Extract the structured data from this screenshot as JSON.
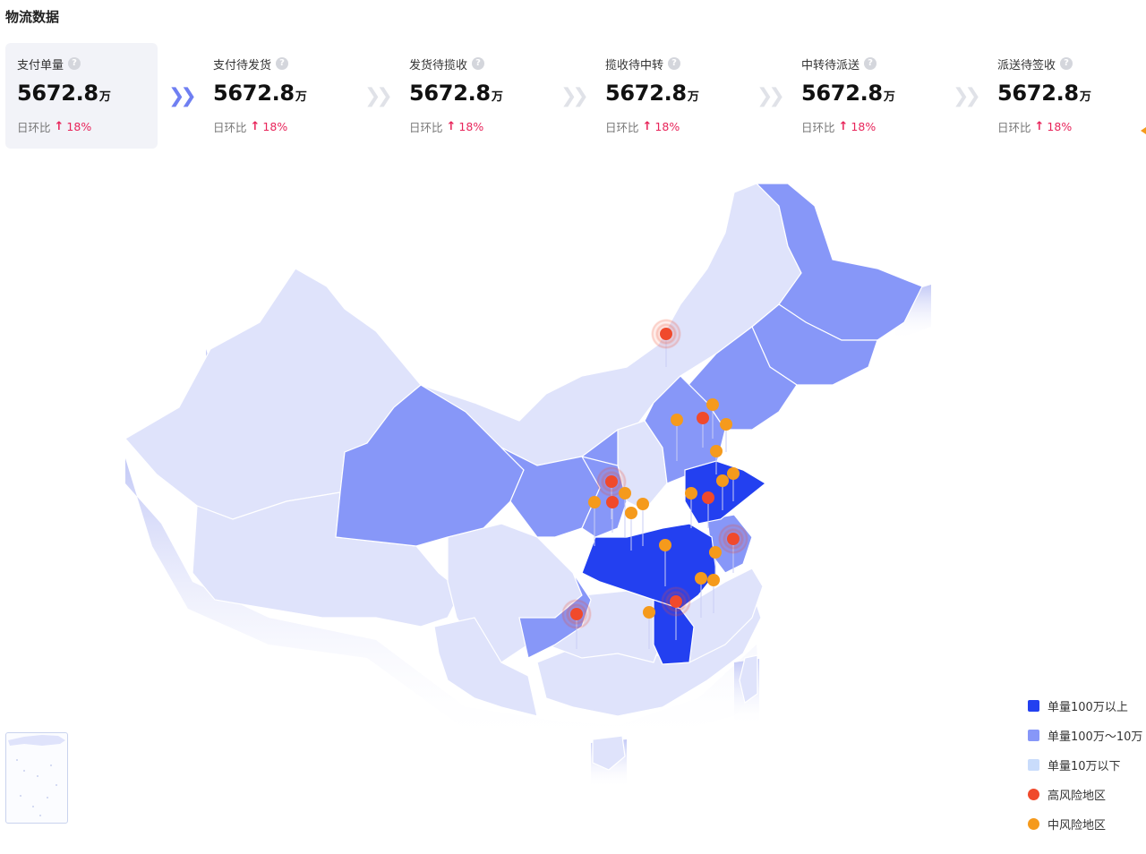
{
  "page": {
    "title": "物流数据"
  },
  "funnel": {
    "steps": [
      {
        "label": "支付单量",
        "value": "5672.8",
        "unit": "万",
        "compare_label": "日环比",
        "change": "18%"
      },
      {
        "label": "支付待发货",
        "value": "5672.8",
        "unit": "万",
        "compare_label": "日环比",
        "change": "18%"
      },
      {
        "label": "发货待揽收",
        "value": "5672.8",
        "unit": "万",
        "compare_label": "日环比",
        "change": "18%"
      },
      {
        "label": "揽收待中转",
        "value": "5672.8",
        "unit": "万",
        "compare_label": "日环比",
        "change": "18%"
      },
      {
        "label": "中转待派送",
        "value": "5672.8",
        "unit": "万",
        "compare_label": "日环比",
        "change": "18%"
      },
      {
        "label": "派送待签收",
        "value": "5672.8",
        "unit": "万",
        "compare_label": "日环比",
        "change": "18%"
      }
    ],
    "active_step": 0,
    "icons": {
      "help": "question-circle-icon",
      "trend": "arrow-up-icon",
      "separator": "double-chevron-right-icon"
    }
  },
  "legend": {
    "items": [
      {
        "label": "单量100万以上",
        "color": "#2340f0",
        "shape": "square"
      },
      {
        "label": "单量100万～10万",
        "color": "#8797f8",
        "shape": "square"
      },
      {
        "label": "单量10万以下",
        "color": "#c9dcfb",
        "shape": "square"
      },
      {
        "label": "高风险地区",
        "color": "#f04a2c",
        "shape": "circle"
      },
      {
        "label": "中风险地区",
        "color": "#f59a1c",
        "shape": "circle"
      }
    ]
  },
  "colors": {
    "tier_high": "#2340f0",
    "tier_mid": "#8797f8",
    "tier_low": "#dfe3fb",
    "risk_high": "#f04a2c",
    "risk_mid": "#f59a1c",
    "trend_up": "#e8245a"
  }
}
